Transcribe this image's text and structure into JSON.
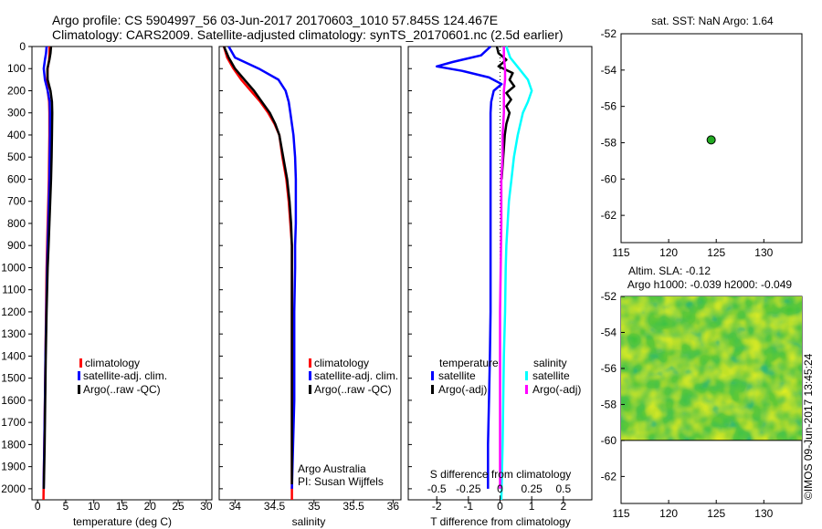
{
  "header": {
    "line1": "Argo profile: CS 5904997_56 03-Jun-2017 20170603_1010 57.845S 124.467E",
    "line2": "Climatology: CARS2009. Satellite-adjusted climatology: synTS_20170601.nc (2.5d earlier)"
  },
  "colors": {
    "climatology": "#ff0000",
    "satellite": "#0000ff",
    "argo": "#000000",
    "sal_satellite": "#00ffff",
    "sal_argo": "#ff00ff",
    "marker": "#22aa22"
  },
  "panels": {
    "temperature": {
      "xlabel": "temperature (deg C)",
      "legend": [
        "climatology",
        "satellite-adj. clim.",
        "Argo(..raw -QC)"
      ]
    },
    "salinity": {
      "xlabel": "salinity",
      "legend": [
        "climatology",
        "satellite-adj. clim.",
        "Argo(..raw -QC)"
      ],
      "note1": "Argo Australia",
      "note2": "PI: Susan Wijffels"
    },
    "difference": {
      "top_label": "S difference from climatology",
      "xlabel": "T difference from climatology",
      "legend_head_t": "temperature",
      "legend_head_s": "salinity",
      "legend_t": [
        "satellite",
        "Argo(-adj)"
      ],
      "legend_s": [
        "satellite",
        "Argo(-adj)"
      ]
    },
    "map1": {
      "title": "sat. SST: NaN Argo: 1.64"
    },
    "map2": {
      "title1": "Altim. SLA: -0.12",
      "title2": "Argo h1000: -0.039 h2000: -0.049"
    },
    "side_note": "©IMOS 09-Jun-2017 13:45:24"
  },
  "chart_data": [
    {
      "type": "line",
      "title": "temperature profile",
      "xlabel": "temperature (deg C)",
      "ylabel": "depth",
      "xlim": [
        -1,
        31
      ],
      "ylim": [
        2050,
        0
      ],
      "xticks": [
        0,
        5,
        10,
        15,
        20,
        25,
        30
      ],
      "yticks": [
        0,
        100,
        200,
        300,
        400,
        500,
        600,
        700,
        800,
        900,
        1000,
        1100,
        1200,
        1300,
        1400,
        1500,
        1600,
        1700,
        1800,
        1900,
        2000
      ],
      "series": [
        {
          "name": "climatology",
          "color": "#ff0000",
          "x": [
            2.1,
            2.1,
            2.05,
            1.8,
            1.7,
            1.8,
            2.05,
            2.1,
            2.1,
            2.05,
            2.0,
            1.9,
            1.8,
            1.7,
            1.6,
            1.5,
            1.4,
            1.3,
            1.2,
            1.1,
            1.05
          ],
          "y": [
            0,
            30,
            60,
            100,
            150,
            200,
            250,
            300,
            400,
            500,
            600,
            700,
            800,
            900,
            1000,
            1200,
            1400,
            1600,
            1800,
            1950,
            2050
          ]
        },
        {
          "name": "satellite-adj. clim.",
          "color": "#0000ff",
          "x": [
            1.6,
            1.5,
            1.3,
            1.1,
            1.3,
            1.8,
            2.15,
            2.2,
            2.2,
            2.15,
            2.1,
            2.0,
            1.9,
            1.8,
            1.7,
            1.55,
            1.4,
            1.3,
            1.2,
            1.1,
            1.1
          ],
          "y": [
            0,
            30,
            60,
            100,
            150,
            200,
            250,
            300,
            400,
            500,
            600,
            700,
            800,
            900,
            1000,
            1200,
            1400,
            1600,
            1800,
            1950,
            2000
          ]
        },
        {
          "name": "Argo(..raw -QC)",
          "color": "#000000",
          "x": [
            2.4,
            2.3,
            2.1,
            1.75,
            1.8,
            2.3,
            2.55,
            2.6,
            2.55,
            2.5,
            2.4,
            2.25,
            2.1,
            1.95,
            1.8,
            1.6,
            1.45,
            1.35,
            1.25,
            1.15,
            1.1
          ],
          "y": [
            0,
            30,
            60,
            100,
            150,
            200,
            250,
            300,
            400,
            500,
            600,
            700,
            800,
            900,
            1000,
            1200,
            1400,
            1600,
            1800,
            1950,
            2000
          ]
        }
      ]
    },
    {
      "type": "line",
      "title": "salinity profile",
      "xlabel": "salinity",
      "ylabel": "depth",
      "xlim": [
        33.8,
        36.1
      ],
      "ylim": [
        2050,
        0
      ],
      "xticks": [
        34,
        34.5,
        35,
        35.5,
        36
      ],
      "xticklabels": [
        "34",
        "34.5",
        "35",
        "35.5",
        "36"
      ],
      "series": [
        {
          "name": "climatology",
          "color": "#ff0000",
          "x": [
            33.86,
            33.9,
            33.98,
            34.08,
            34.2,
            34.32,
            34.42,
            34.5,
            34.56,
            34.6,
            34.65,
            34.68,
            34.7,
            34.72,
            34.72,
            34.72,
            34.72,
            34.72
          ],
          "y": [
            0,
            50,
            100,
            150,
            200,
            250,
            300,
            350,
            400,
            500,
            600,
            700,
            800,
            900,
            1000,
            1200,
            1600,
            2050
          ]
        },
        {
          "name": "satellite-adj. clim.",
          "color": "#0000ff",
          "x": [
            33.92,
            34.0,
            34.3,
            34.55,
            34.64,
            34.68,
            34.7,
            34.72,
            34.74,
            34.76,
            34.77,
            34.77,
            34.77,
            34.76,
            34.76,
            34.75,
            34.75,
            34.72
          ],
          "y": [
            0,
            50,
            100,
            150,
            200,
            250,
            300,
            350,
            400,
            500,
            600,
            700,
            800,
            900,
            1000,
            1200,
            1600,
            2000
          ]
        },
        {
          "name": "Argo(..raw -QC)",
          "color": "#000000",
          "x": [
            33.86,
            33.92,
            34.0,
            34.12,
            34.24,
            34.34,
            34.44,
            34.51,
            34.56,
            34.61,
            34.66,
            34.69,
            34.71,
            34.72,
            34.72,
            34.72,
            34.72,
            34.72
          ],
          "y": [
            0,
            50,
            100,
            150,
            200,
            250,
            300,
            350,
            400,
            500,
            600,
            700,
            800,
            900,
            1000,
            1200,
            1600,
            1980
          ]
        }
      ]
    },
    {
      "type": "line",
      "title": "difference from climatology",
      "xlabel": "T difference from climatology",
      "xlim": [
        -2.9,
        2.9
      ],
      "xticks": [
        -2,
        -1,
        0,
        1,
        2
      ],
      "x2label": "S difference from climatology",
      "x2lim": [
        -0.725,
        0.725
      ],
      "x2ticks": [
        -0.5,
        -0.25,
        0,
        0.25,
        0.5
      ],
      "x2ticklabels": [
        "-0.5",
        "-0.25",
        "0",
        "0.25",
        "0.5"
      ],
      "ylim": [
        2050,
        0
      ],
      "series": [
        {
          "name": "temperature satellite",
          "color": "#0000ff",
          "axis": "T",
          "x": [
            -0.3,
            -0.6,
            -1.5,
            -2.0,
            -1.2,
            -0.35,
            0.05,
            -0.2,
            -0.28,
            -0.3,
            -0.3,
            -0.3,
            -0.3,
            -0.3,
            -0.3,
            -0.32,
            -0.35,
            -0.38,
            -0.38
          ],
          "y": [
            0,
            40,
            70,
            90,
            110,
            140,
            170,
            200,
            250,
            300,
            400,
            600,
            800,
            1000,
            1200,
            1400,
            1600,
            1800,
            2000
          ]
        },
        {
          "name": "temperature Argo(-adj)",
          "color": "#000000",
          "axis": "T",
          "x": [
            -0.1,
            -0.05,
            0.2,
            -0.05,
            0.4,
            0.3,
            0.45,
            0.2,
            0.35,
            0.2,
            0.3,
            0.2,
            0.15,
            0.1,
            0.05
          ],
          "y": [
            0,
            30,
            60,
            90,
            120,
            150,
            180,
            210,
            240,
            270,
            300,
            350,
            400,
            500,
            600
          ]
        },
        {
          "name": "salinity satellite",
          "color": "#00ffff",
          "axis": "S",
          "x": [
            0.05,
            0.08,
            0.15,
            0.22,
            0.25,
            0.22,
            0.18,
            0.14,
            0.11,
            0.09,
            0.07,
            0.06,
            0.05,
            0.045,
            0.04,
            0.03,
            0.02,
            0.01
          ],
          "y": [
            0,
            50,
            100,
            150,
            200,
            250,
            300,
            400,
            500,
            600,
            700,
            800,
            900,
            1000,
            1200,
            1400,
            1800,
            2050
          ]
        },
        {
          "name": "salinity Argo(-adj)",
          "color": "#ff00ff",
          "axis": "S",
          "x": [
            0.03,
            0.03,
            0.04,
            0.04,
            0.03,
            0.03,
            0.02,
            0.02,
            0.01,
            0.01,
            0.005,
            0.0,
            0.0
          ],
          "y": [
            0,
            50,
            100,
            150,
            200,
            300,
            400,
            500,
            600,
            800,
            1000,
            1200,
            2000
          ]
        }
      ]
    },
    {
      "type": "scatter",
      "title": "sat. SST: NaN Argo: 1.64",
      "xlim": [
        115,
        134
      ],
      "ylim": [
        -63.5,
        -52
      ],
      "xticks": [
        115,
        120,
        125,
        130
      ],
      "yticks": [
        -52,
        -54,
        -56,
        -58,
        -60,
        -62
      ],
      "x": [
        124.467
      ],
      "y": [
        -57.845
      ]
    },
    {
      "type": "heatmap",
      "title": "Altim. SLA: -0.12",
      "xlim": [
        115,
        134
      ],
      "ylim": [
        -63.5,
        -52
      ],
      "xticks": [
        115,
        120,
        125,
        130
      ],
      "yticks": [
        -52,
        -54,
        -56,
        -58,
        -60,
        -62
      ],
      "data_extent_lat": [
        -60,
        -52
      ]
    }
  ]
}
